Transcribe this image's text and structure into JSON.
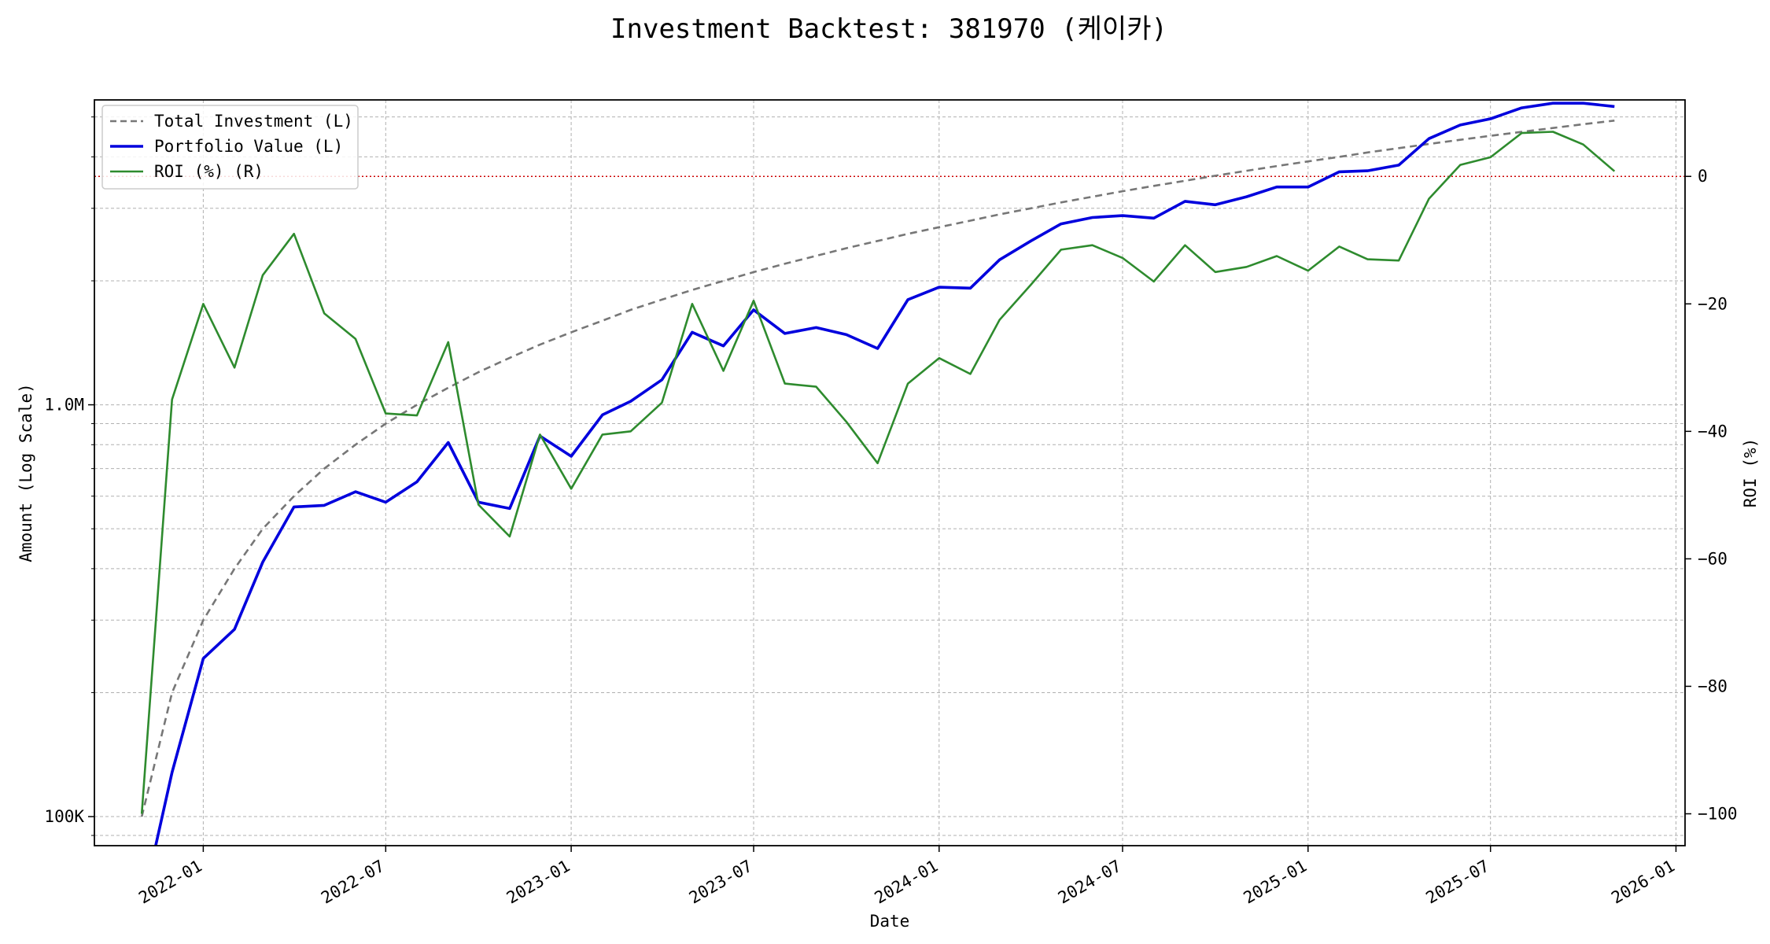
{
  "chart_data": {
    "type": "line",
    "title": "Investment Backtest: 381970 (케이카)",
    "xlabel": "Date",
    "ylabel_left": "Amount (Log Scale)",
    "ylabel_right": "ROI (%)",
    "left_scale": "log",
    "left_ylim": [
      85000,
      5500000
    ],
    "right_ylim": [
      -105,
      12
    ],
    "xlim": [
      "2021-09-15",
      "2026-01-10"
    ],
    "x_ticks": [
      "2022-01",
      "2022-07",
      "2023-01",
      "2023-07",
      "2024-01",
      "2024-07",
      "2025-01",
      "2025-07",
      "2026-01"
    ],
    "left_ticks": [
      {
        "value": 100000,
        "label": "100K"
      },
      {
        "value": 1000000,
        "label": "1.0M"
      }
    ],
    "right_ticks": [
      {
        "value": 0,
        "label": "0"
      },
      {
        "value": -20,
        "label": "−20"
      },
      {
        "value": -40,
        "label": "−40"
      },
      {
        "value": -60,
        "label": "−60"
      },
      {
        "value": -80,
        "label": "−80"
      },
      {
        "value": -100,
        "label": "−100"
      }
    ],
    "grid": true,
    "legend_position": "top-left",
    "reference_line": {
      "axis": "right",
      "value": 0,
      "color": "#cc0000"
    },
    "colors": {
      "left_axis": "#0000cc",
      "right_axis": "#228b22",
      "investment": "#777777",
      "portfolio": "#0000dd",
      "roi": "#2e8b2e"
    },
    "x": [
      "2021-11-01",
      "2021-12-01",
      "2022-01-01",
      "2022-02-01",
      "2022-03-01",
      "2022-04-01",
      "2022-05-01",
      "2022-06-01",
      "2022-07-01",
      "2022-08-01",
      "2022-09-01",
      "2022-10-01",
      "2022-11-01",
      "2022-12-01",
      "2023-01-01",
      "2023-02-01",
      "2023-03-01",
      "2023-04-01",
      "2023-05-01",
      "2023-06-01",
      "2023-07-01",
      "2023-08-01",
      "2023-09-01",
      "2023-10-01",
      "2023-11-01",
      "2023-12-01",
      "2024-01-01",
      "2024-02-01",
      "2024-03-01",
      "2024-04-01",
      "2024-05-01",
      "2024-06-01",
      "2024-07-01",
      "2024-08-01",
      "2024-09-01",
      "2024-10-01",
      "2024-11-01",
      "2024-12-01",
      "2025-01-01",
      "2025-02-01",
      "2025-03-01",
      "2025-04-01",
      "2025-05-01",
      "2025-06-01",
      "2025-07-01",
      "2025-08-01",
      "2025-09-01",
      "2025-10-01",
      "2025-11-01"
    ],
    "series": [
      {
        "name": "Total Investment (L)",
        "axis": "left",
        "style": "dashed",
        "values": [
          100000,
          200000,
          300000,
          400000,
          500000,
          600000,
          700000,
          800000,
          900000,
          1000000,
          1100000,
          1200000,
          1300000,
          1400000,
          1500000,
          1600000,
          1700000,
          1800000,
          1900000,
          2000000,
          2100000,
          2200000,
          2300000,
          2400000,
          2500000,
          2600000,
          2700000,
          2800000,
          2900000,
          3000000,
          3100000,
          3200000,
          3300000,
          3400000,
          3500000,
          3600000,
          3700000,
          3800000,
          3900000,
          4000000,
          4100000,
          4200000,
          4300000,
          4400000,
          4500000,
          4600000,
          4700000,
          4800000,
          4900000
        ]
      },
      {
        "name": "Portfolio Value (L)",
        "axis": "left",
        "style": "solid",
        "values": [
          60000,
          128000,
          242000,
          285000,
          415000,
          565000,
          570000,
          615000,
          580000,
          650000,
          810000,
          580000,
          560000,
          840000,
          750000,
          945000,
          1020000,
          1150000,
          1500000,
          1390000,
          1700000,
          1490000,
          1540000,
          1480000,
          1370000,
          1800000,
          1930000,
          1920000,
          2250000,
          2500000,
          2750000,
          2850000,
          2880000,
          2840000,
          3120000,
          3060000,
          3200000,
          3380000,
          3380000,
          3680000,
          3700000,
          3820000,
          4430000,
          4780000,
          4950000,
          5260000,
          5400000,
          5400000,
          5300000
        ]
      },
      {
        "name": "ROI (%) (R)",
        "axis": "right",
        "style": "solid",
        "values": [
          -100,
          -35,
          -20,
          -30,
          -15.5,
          -9,
          -21.5,
          -25.5,
          -37.2,
          -37.5,
          -26,
          -51.5,
          -56.5,
          -40.5,
          -49,
          -40.5,
          -40,
          -35.5,
          -20,
          -30.5,
          -19.5,
          -32.5,
          -33,
          -38.5,
          -45,
          -32.5,
          -28.5,
          -31,
          -22.5,
          -17,
          -11.5,
          -10.8,
          -12.8,
          -16.5,
          -10.8,
          -15,
          -14.2,
          -12.5,
          -14.8,
          -11,
          -13,
          -13.2,
          -3.5,
          1.8,
          3,
          6.8,
          7,
          5,
          0.8
        ]
      }
    ]
  }
}
